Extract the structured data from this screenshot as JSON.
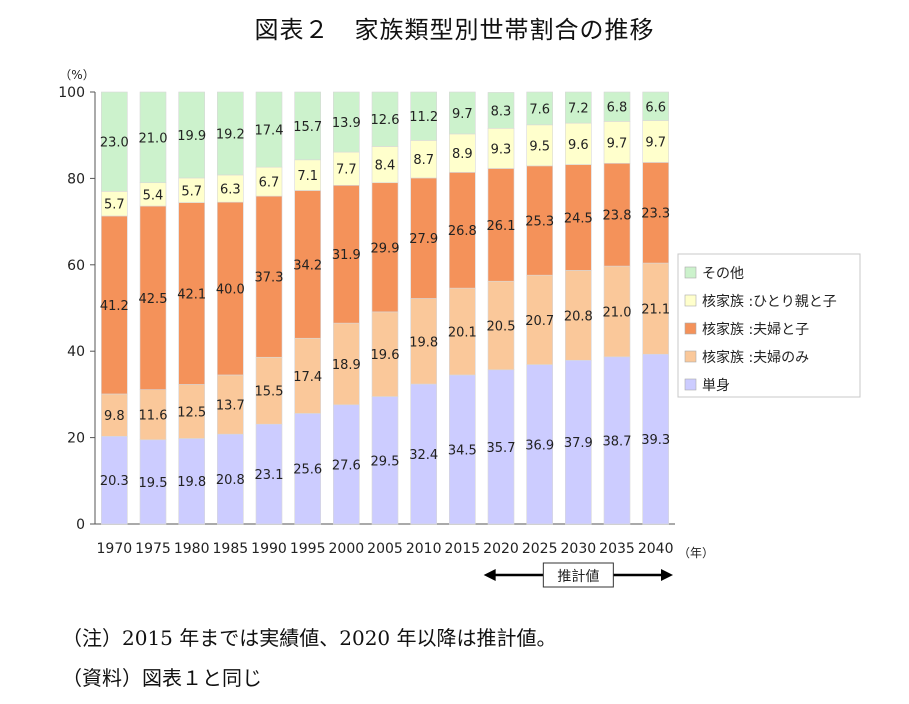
{
  "title": "図表２　家族類型別世帯割合の推移",
  "notes": {
    "note1": "（注）2015 年までは実績値、2020 年以降は推計値。",
    "note2": "（資料）図表１と同じ"
  },
  "chart_data": {
    "type": "bar",
    "stacked": true,
    "categories": [
      "1970",
      "1975",
      "1980",
      "1985",
      "1990",
      "1995",
      "2000",
      "2005",
      "2010",
      "2015",
      "2020",
      "2025",
      "2030",
      "2035",
      "2040"
    ],
    "series": [
      {
        "name": "単身",
        "color": "#ccccff",
        "values": [
          20.3,
          19.5,
          19.8,
          20.8,
          23.1,
          25.6,
          27.6,
          29.5,
          32.4,
          34.5,
          35.7,
          36.9,
          37.9,
          38.7,
          39.3
        ]
      },
      {
        "name": "核家族 :夫婦のみ",
        "color": "#fac89a",
        "values": [
          9.8,
          11.6,
          12.5,
          13.7,
          15.5,
          17.4,
          18.9,
          19.6,
          19.8,
          20.1,
          20.5,
          20.7,
          20.8,
          21.0,
          21.1
        ]
      },
      {
        "name": "核家族 :夫婦と子",
        "color": "#f4925a",
        "values": [
          41.2,
          42.5,
          42.1,
          40.0,
          37.3,
          34.2,
          31.9,
          29.9,
          27.9,
          26.8,
          26.1,
          25.3,
          24.5,
          23.8,
          23.3
        ]
      },
      {
        "name": "核家族 :ひとり親と子",
        "color": "#ffffcc",
        "values": [
          5.7,
          5.4,
          5.7,
          6.3,
          6.7,
          7.1,
          7.7,
          8.4,
          8.7,
          8.9,
          9.3,
          9.5,
          9.6,
          9.7,
          9.7
        ]
      },
      {
        "name": "その他",
        "color": "#ccf2cc",
        "values": [
          23.0,
          21.0,
          19.9,
          19.2,
          17.4,
          15.7,
          13.9,
          12.6,
          11.2,
          9.7,
          8.3,
          7.6,
          7.2,
          6.8,
          6.6
        ]
      }
    ],
    "legend_order": [
      "その他",
      "核家族 :ひとり親と子",
      "核家族 :夫婦と子",
      "核家族 :夫婦のみ",
      "単身"
    ],
    "legend_position": "right",
    "ylim": [
      0,
      100
    ],
    "yticks": [
      0,
      20,
      40,
      60,
      80,
      100
    ],
    "y_unit": "（%）",
    "x_unit": "（年）",
    "projection_label": "推計値",
    "projection_start": "2020",
    "projection_end": "2040"
  }
}
